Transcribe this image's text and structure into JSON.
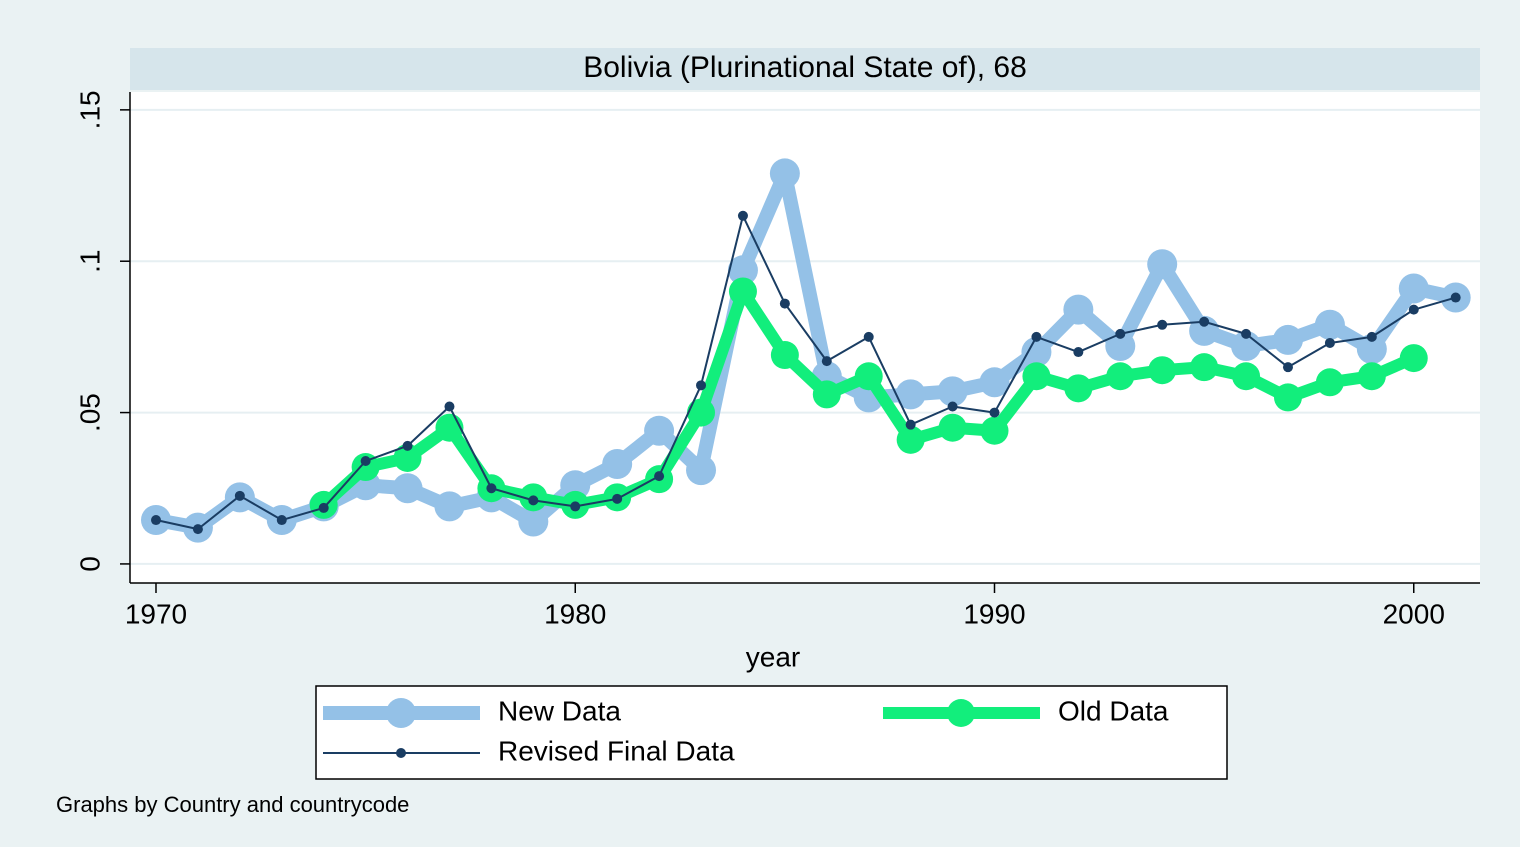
{
  "chart_data": {
    "type": "line",
    "title": "Bolivia (Plurinational State of), 68",
    "x_label": "year",
    "note": "Graphs by Country and countrycode",
    "x": [
      1970,
      1971,
      1972,
      1973,
      1974,
      1975,
      1976,
      1977,
      1978,
      1979,
      1980,
      1981,
      1982,
      1983,
      1984,
      1985,
      1986,
      1987,
      1988,
      1989,
      1990,
      1991,
      1992,
      1993,
      1994,
      1995,
      1996,
      1997,
      1998,
      1999,
      2000,
      2001
    ],
    "series": [
      {
        "name": "New Data",
        "color": "#94c1e7",
        "line_width": 14,
        "marker_size": 15,
        "values": [
          0.0145,
          0.012,
          0.022,
          0.0145,
          0.019,
          0.026,
          0.025,
          0.019,
          0.022,
          0.014,
          0.026,
          0.033,
          0.044,
          0.031,
          0.097,
          0.129,
          0.062,
          0.055,
          0.056,
          0.057,
          0.06,
          0.07,
          0.084,
          0.072,
          0.099,
          0.077,
          0.072,
          0.074,
          0.079,
          0.071,
          0.091,
          0.088
        ]
      },
      {
        "name": "Old Data",
        "color": "#12ee7c",
        "line_width": 12,
        "marker_size": 14,
        "values": [
          null,
          null,
          null,
          null,
          0.0195,
          0.032,
          0.035,
          0.045,
          0.025,
          0.022,
          0.0195,
          0.022,
          0.028,
          0.05,
          0.09,
          0.069,
          0.056,
          0.062,
          0.041,
          0.045,
          0.044,
          0.062,
          0.058,
          0.062,
          0.064,
          0.065,
          0.062,
          0.055,
          0.06,
          0.062,
          0.068,
          null
        ]
      },
      {
        "name": "Revised Final Data",
        "color": "#1a3d63",
        "line_width": 2,
        "marker_size": 5,
        "values": [
          0.0145,
          0.0115,
          0.0225,
          0.0145,
          0.0185,
          0.034,
          0.039,
          0.052,
          0.025,
          0.021,
          0.019,
          0.0215,
          0.029,
          0.059,
          0.115,
          0.086,
          0.067,
          0.075,
          0.046,
          0.052,
          0.05,
          0.075,
          0.07,
          0.076,
          0.079,
          0.08,
          0.076,
          0.065,
          0.073,
          0.075,
          0.084,
          0.088
        ]
      }
    ],
    "xlim": [
      1969.38,
      2001.58
    ],
    "xticks": [
      1970,
      1980,
      1990,
      2000
    ],
    "ylim": [
      -0.0063,
      0.1559
    ],
    "yticks": [
      0,
      {
        "value": 0.05,
        "label": ".05"
      },
      {
        "value": 0.1,
        "label": ".1"
      },
      {
        "value": 0.15,
        "label": ".15"
      }
    ],
    "grid": true,
    "legend": "bottom"
  }
}
